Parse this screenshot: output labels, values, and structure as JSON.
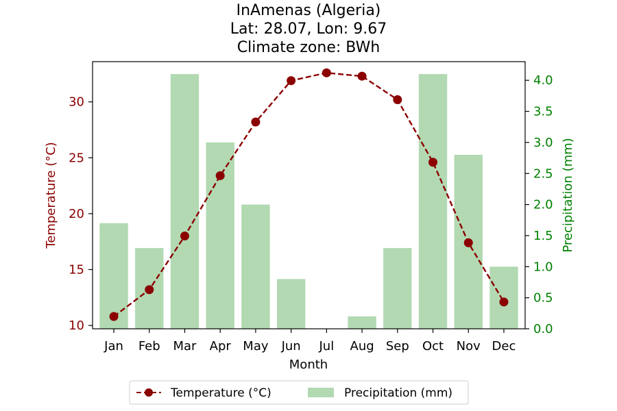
{
  "chart_data": {
    "type": "bar",
    "title": [
      "InAmenas (Algeria)",
      "Lat: 28.07, Lon: 9.67",
      "Climate zone: BWh"
    ],
    "xlabel": "Month",
    "categories": [
      "Jan",
      "Feb",
      "Mar",
      "Apr",
      "May",
      "Jun",
      "Jul",
      "Aug",
      "Sep",
      "Oct",
      "Nov",
      "Dec"
    ],
    "y_left": {
      "label": "Temperature (°C)",
      "ticks": [
        "10",
        "15",
        "20",
        "25",
        "30"
      ],
      "color": "#8b0000"
    },
    "y_right": {
      "label": "Precipitation (mm)",
      "ticks": [
        "0.0",
        "0.5",
        "1.0",
        "1.5",
        "2.0",
        "2.5",
        "3.0",
        "3.5",
        "4.0"
      ],
      "color": "#008000"
    },
    "series": [
      {
        "name": "Temperature (°C)",
        "type": "line",
        "axis": "left",
        "color": "#8b0000",
        "values": [
          10.8,
          13.2,
          18.0,
          23.4,
          28.2,
          31.9,
          32.6,
          32.3,
          30.2,
          24.6,
          17.4,
          12.1
        ]
      },
      {
        "name": "Precipitation (mm)",
        "type": "bar",
        "axis": "right",
        "color": "#b2d9b2",
        "values": [
          1.7,
          1.3,
          4.1,
          3.0,
          2.0,
          0.8,
          0.0,
          0.2,
          1.3,
          4.1,
          2.8,
          1.0
        ]
      }
    ],
    "ylim_left": [
      9.7,
      33.6
    ],
    "ylim_right": [
      0,
      4.3
    ],
    "legend": "bottom-center",
    "grid": false
  }
}
